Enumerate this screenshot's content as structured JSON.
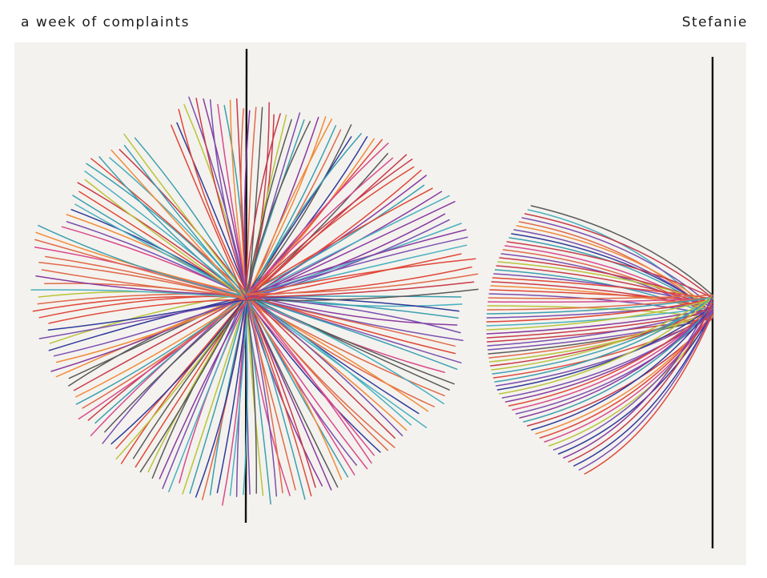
{
  "header": {
    "title": "a week of complaints",
    "author": "Stefanie"
  },
  "palette": [
    "#e0483a",
    "#3a9fb0",
    "#7a4fb0",
    "#e06a4a",
    "#d84a8c",
    "#5a5a5a",
    "#b8c43a",
    "#2f3a9a",
    "#f08a3a",
    "#c83a4a",
    "#4ab0c0",
    "#8a3aa0"
  ]
}
